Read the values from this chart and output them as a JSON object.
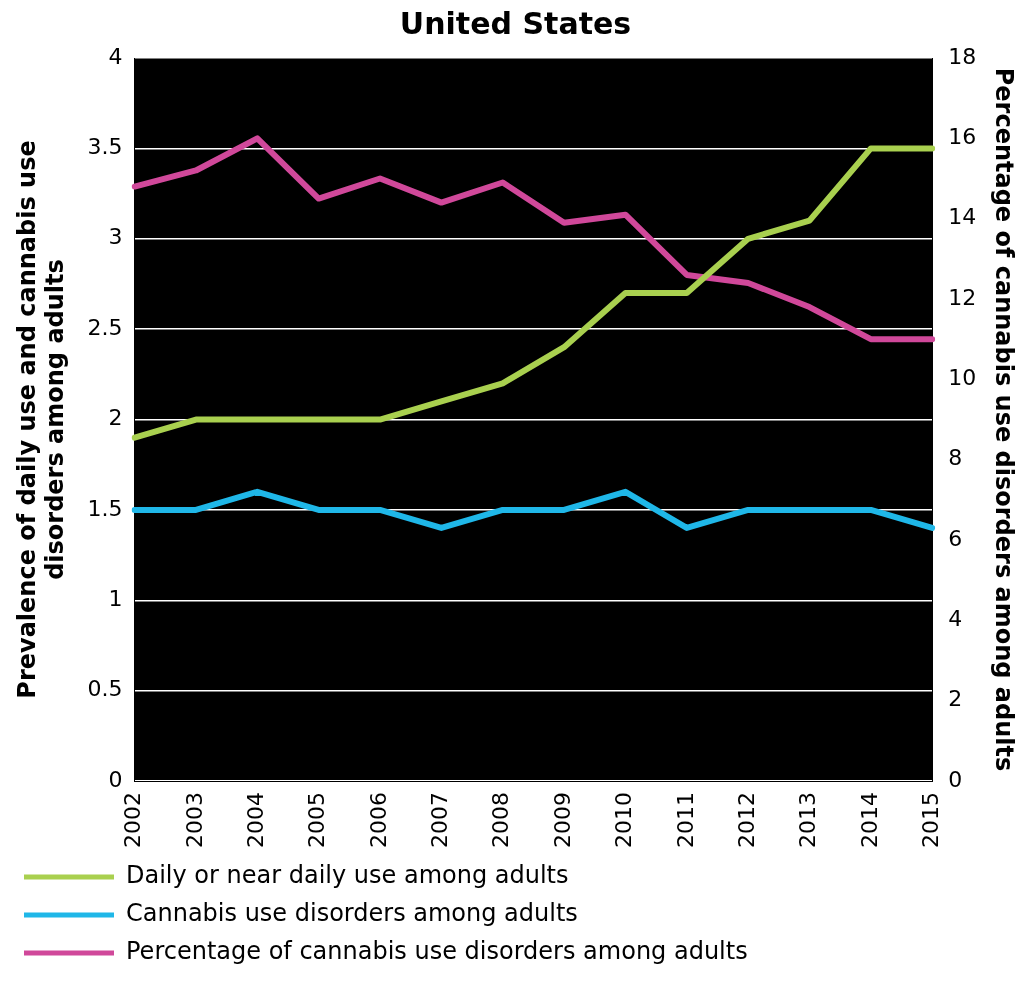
{
  "chart_data": {
    "type": "line",
    "title": "United States",
    "ylabel": "Prevalence of daily use and cannabis use disorders among adults",
    "y2label": "Percentage of cannabis use disorders among adults",
    "categories": [
      "2002",
      "2003",
      "2004",
      "2005",
      "2006",
      "2007",
      "2008",
      "2009",
      "2010",
      "2011",
      "2012",
      "2013",
      "2014",
      "2015"
    ],
    "series": [
      {
        "name": "Daily or near daily use among adults",
        "color": "#a9d04f",
        "values": [
          1.9,
          2.0,
          2.0,
          2.0,
          2.0,
          2.1,
          2.2,
          2.4,
          2.7,
          2.7,
          3.0,
          3.1,
          3.5,
          3.5
        ]
      },
      {
        "name": "Cannabis use disorders among adults",
        "color": "#1fb7e8",
        "values": [
          1.5,
          1.5,
          1.6,
          1.5,
          1.5,
          1.4,
          1.5,
          1.5,
          1.6,
          1.4,
          1.5,
          1.5,
          1.5,
          1.4
        ]
      },
      {
        "name": "Percentage of cannabis use disorders among adults",
        "color": "#d0489a",
        "axis": "y2",
        "values": [
          14.8,
          15.2,
          16.0,
          14.5,
          15.0,
          14.4,
          14.9,
          13.9,
          14.1,
          12.6,
          12.4,
          11.8,
          11.0,
          11.0
        ]
      }
    ],
    "ylim": [
      0,
      4
    ],
    "yticks": [
      0,
      0.5,
      1,
      1.5,
      2,
      2.5,
      3,
      3.5,
      4
    ],
    "y2lim": [
      0,
      18
    ],
    "y2ticks": [
      0,
      2,
      4,
      6,
      8,
      10,
      12,
      14,
      16,
      18
    ],
    "grid": "y",
    "legend": "bottom",
    "marker": "none",
    "line_style": "solid"
  }
}
